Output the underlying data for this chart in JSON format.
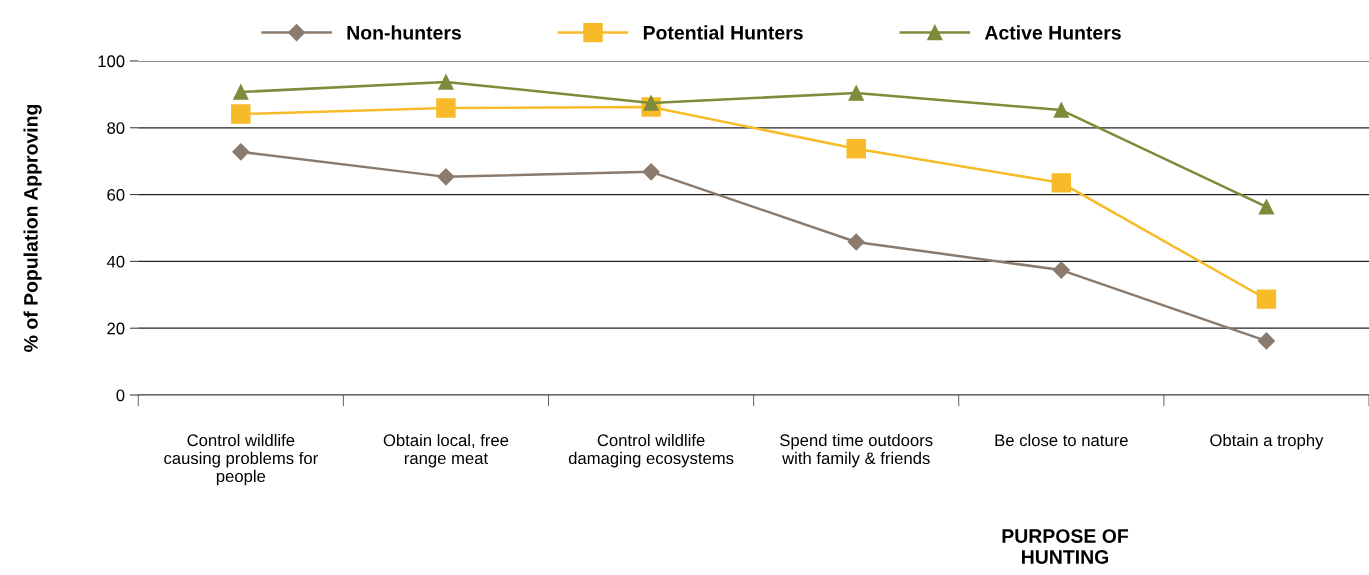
{
  "chart_data": {
    "type": "line",
    "xlabel": "PURPOSE OF HUNTING",
    "ylabel": "% of Population Approving",
    "categories": [
      "Control wildlife causing problems for people",
      "Obtain local, free range meat",
      "Control wildlife damaging ecosystems",
      "Spend time outdoors with family & friends",
      "Be close to nature",
      "Obtain a trophy"
    ],
    "series": [
      {
        "name": "Non-hunters",
        "color": "#8a7b6e",
        "marker": "diamond",
        "values": [
          72.8,
          65.3,
          66.8,
          45.8,
          37.4,
          16.2
        ]
      },
      {
        "name": "Potential Hunters",
        "color": "#f7bb2a",
        "marker": "square",
        "values": [
          84.1,
          85.9,
          86.2,
          73.7,
          63.5,
          28.7
        ]
      },
      {
        "name": "Active Hunters",
        "color": "#7f8b3a",
        "marker": "triangle",
        "values": [
          90.7,
          93.7,
          87.4,
          90.4,
          85.3,
          56.3
        ]
      }
    ],
    "ylim": [
      0,
      100
    ],
    "yticks": [
      0,
      20,
      40,
      60,
      80,
      100
    ],
    "grid": "y",
    "legend": "top",
    "line_style": "solid"
  }
}
